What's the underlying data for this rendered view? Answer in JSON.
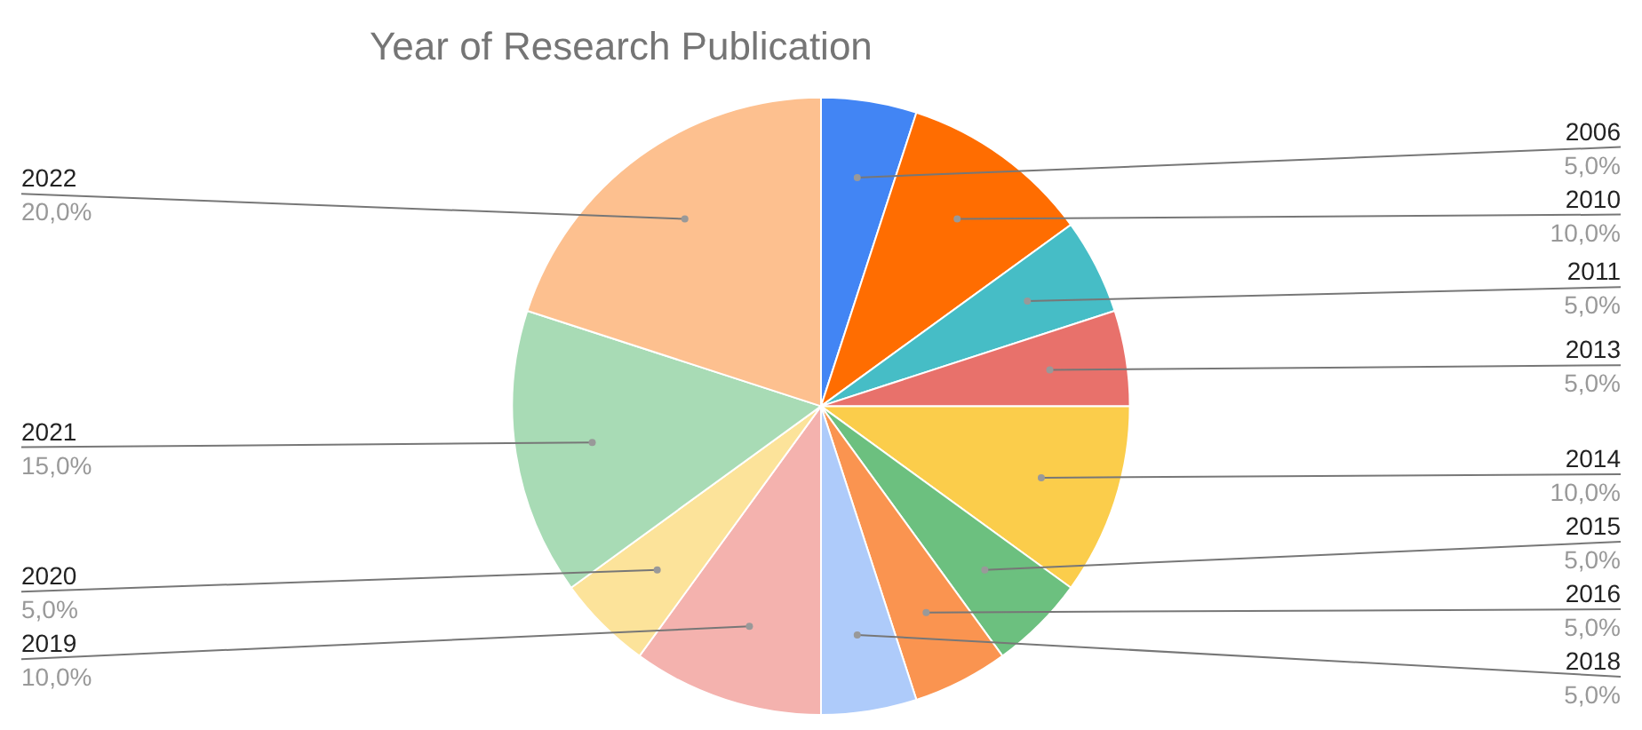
{
  "chart_data": {
    "type": "pie",
    "title": "Year of Research Publication",
    "categories": [
      "2006",
      "2010",
      "2011",
      "2013",
      "2014",
      "2015",
      "2016",
      "2018",
      "2019",
      "2020",
      "2021",
      "2022"
    ],
    "values": [
      5,
      10,
      5,
      5,
      10,
      5,
      5,
      5,
      10,
      5,
      15,
      20
    ],
    "value_labels": [
      "5,0%",
      "10,0%",
      "5,0%",
      "5,0%",
      "10,0%",
      "5,0%",
      "5,0%",
      "5,0%",
      "10,0%",
      "5,0%",
      "15,0%",
      "20,0%"
    ],
    "colors": [
      "#4285f4",
      "#ff6d01",
      "#46bdc6",
      "#e8716b",
      "#fbcd4b",
      "#6cc07f",
      "#fa9450",
      "#aecbfa",
      "#f4b2ae",
      "#fce39a",
      "#a8dbb5",
      "#fdc08f"
    ],
    "legend": false
  }
}
